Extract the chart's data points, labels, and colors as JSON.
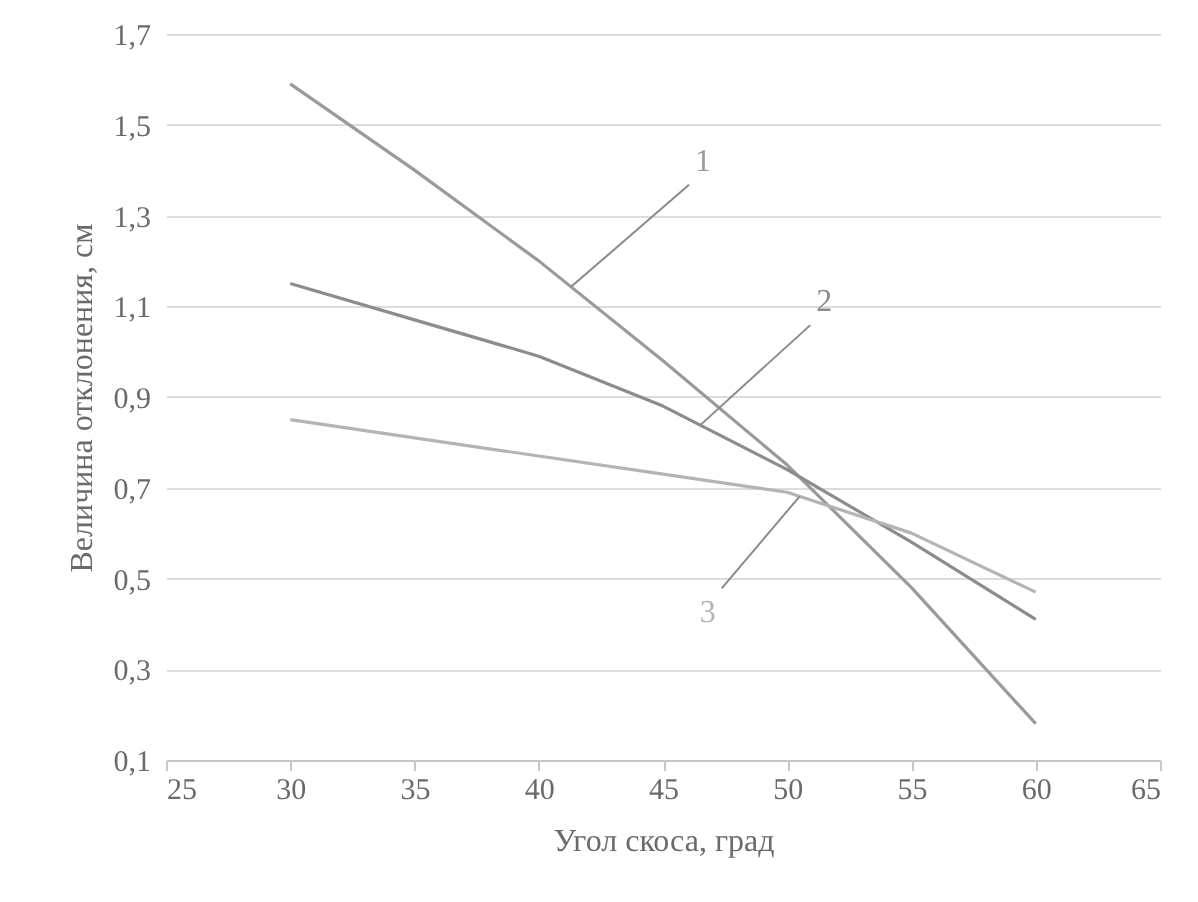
{
  "chart_data": {
    "type": "line",
    "xlabel": "Угол скоса, град",
    "ylabel": "Величина отклонения, см",
    "x": [
      30,
      35,
      40,
      45,
      50,
      55,
      60
    ],
    "series": [
      {
        "name": "1",
        "color": "#9a9a9a",
        "values": [
          1.59,
          1.4,
          1.2,
          0.98,
          0.75,
          0.48,
          0.18
        ]
      },
      {
        "name": "2",
        "color": "#8c8c8c",
        "values": [
          1.15,
          1.07,
          0.99,
          0.88,
          0.74,
          0.58,
          0.41
        ]
      },
      {
        "name": "3",
        "color": "#b4b4b4",
        "values": [
          0.85,
          0.81,
          0.77,
          0.73,
          0.69,
          0.6,
          0.47
        ]
      }
    ],
    "xlim": [
      25,
      65
    ],
    "xticks": [
      25,
      30,
      35,
      40,
      45,
      50,
      55,
      60,
      65
    ],
    "ylim": [
      0.1,
      1.7
    ],
    "yticks": [
      {
        "value": 0.1,
        "label": "0,1"
      },
      {
        "value": 0.3,
        "label": "0,3"
      },
      {
        "value": 0.5,
        "label": "0,5"
      },
      {
        "value": 0.7,
        "label": "0,7"
      },
      {
        "value": 0.9,
        "label": "0,9"
      },
      {
        "value": 1.1,
        "label": "1,1"
      },
      {
        "value": 1.3,
        "label": "1,3"
      },
      {
        "value": 1.5,
        "label": "1,5"
      },
      {
        "value": 1.7,
        "label": "1,7"
      }
    ],
    "grid": "y",
    "marker": "none",
    "line_style": "solid"
  }
}
